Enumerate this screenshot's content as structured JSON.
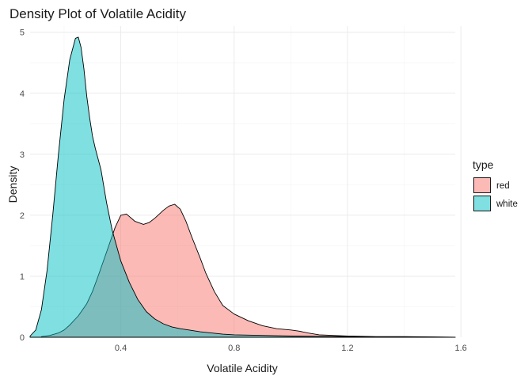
{
  "chart_data": {
    "type": "area",
    "title": "Density Plot of Volatile Acidity",
    "xlabel": "Volatile Acidity",
    "ylabel": "Density",
    "xlim": [
      0.08,
      1.58
    ],
    "ylim": [
      0,
      5.1
    ],
    "x_ticks": [
      0.4,
      0.8,
      1.2,
      1.6
    ],
    "y_ticks": [
      0,
      1,
      2,
      3,
      4,
      5
    ],
    "grid": true,
    "legend": {
      "title": "type",
      "position": "right",
      "entries": [
        "red",
        "white"
      ]
    },
    "colors": {
      "red": "#F8766D",
      "white": "#00BFC4"
    },
    "fill_opacity": 0.5,
    "series": [
      {
        "name": "red",
        "x": [
          0.12,
          0.15,
          0.18,
          0.2,
          0.22,
          0.25,
          0.28,
          0.3,
          0.32,
          0.35,
          0.38,
          0.4,
          0.42,
          0.45,
          0.48,
          0.5,
          0.52,
          0.55,
          0.57,
          0.59,
          0.61,
          0.63,
          0.65,
          0.68,
          0.7,
          0.73,
          0.76,
          0.8,
          0.85,
          0.9,
          0.95,
          1.0,
          1.03,
          1.06,
          1.1,
          1.15,
          1.2,
          1.3,
          1.4,
          1.5,
          1.58
        ],
        "values": [
          0.01,
          0.03,
          0.07,
          0.12,
          0.2,
          0.35,
          0.55,
          0.75,
          1.0,
          1.4,
          1.8,
          2.0,
          2.02,
          1.9,
          1.85,
          1.88,
          1.95,
          2.08,
          2.15,
          2.18,
          2.1,
          1.9,
          1.65,
          1.3,
          1.05,
          0.75,
          0.52,
          0.38,
          0.27,
          0.19,
          0.14,
          0.12,
          0.1,
          0.07,
          0.04,
          0.03,
          0.02,
          0.01,
          0.01,
          0.005,
          0.0
        ]
      },
      {
        "name": "white",
        "x": [
          0.08,
          0.1,
          0.12,
          0.14,
          0.16,
          0.18,
          0.2,
          0.22,
          0.24,
          0.25,
          0.26,
          0.27,
          0.28,
          0.29,
          0.3,
          0.31,
          0.33,
          0.35,
          0.37,
          0.4,
          0.43,
          0.46,
          0.49,
          0.52,
          0.55,
          0.58,
          0.61,
          0.64,
          0.68,
          0.72,
          0.76,
          0.8,
          0.9,
          1.0,
          1.1,
          1.2,
          1.3,
          1.4,
          1.5,
          1.58
        ],
        "values": [
          0.02,
          0.12,
          0.45,
          1.1,
          2.0,
          3.0,
          3.9,
          4.55,
          4.9,
          4.92,
          4.75,
          4.4,
          3.95,
          3.6,
          3.3,
          3.1,
          2.75,
          2.2,
          1.75,
          1.25,
          0.9,
          0.62,
          0.42,
          0.3,
          0.22,
          0.17,
          0.14,
          0.12,
          0.09,
          0.07,
          0.05,
          0.04,
          0.03,
          0.02,
          0.015,
          0.01,
          0.008,
          0.005,
          0.003,
          0.0
        ]
      }
    ]
  }
}
